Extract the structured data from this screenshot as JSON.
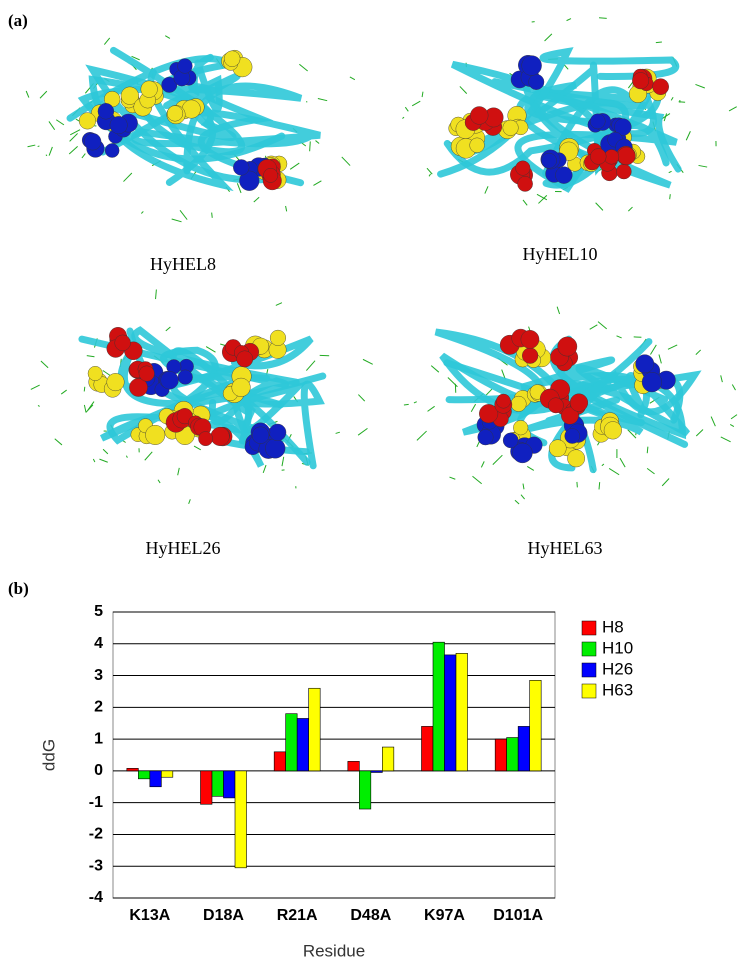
{
  "panel_a": {
    "label": "(a)",
    "captions": [
      "HyHEL8",
      "HyHEL10",
      "HyHEL26",
      "HyHEL63"
    ]
  },
  "chart_data": {
    "type": "bar",
    "panel_label": "(b)",
    "x_label": "Residue",
    "y_label": "ddG",
    "categories": [
      "K13A",
      "D18A",
      "R21A",
      "D48A",
      "K97A",
      "D101A"
    ],
    "series": [
      {
        "name": "H8",
        "color": "#ff0000",
        "values": [
          0.08,
          -1.05,
          0.6,
          0.3,
          1.4,
          1.0
        ]
      },
      {
        "name": "H10",
        "color": "#00ee00",
        "values": [
          -0.25,
          -0.8,
          1.8,
          -1.2,
          4.05,
          1.05
        ]
      },
      {
        "name": "H26",
        "color": "#0000ff",
        "values": [
          -0.5,
          -0.85,
          1.65,
          -0.05,
          3.65,
          1.4
        ]
      },
      {
        "name": "H63",
        "color": "#ffff00",
        "values": [
          -0.2,
          -3.05,
          2.6,
          0.75,
          3.7,
          2.85
        ]
      }
    ],
    "ylim": [
      -4,
      5
    ],
    "yticks": [
      -4,
      -3,
      -2,
      -1,
      0,
      1,
      2,
      3,
      4,
      5
    ],
    "grid": true,
    "legend": "right"
  }
}
